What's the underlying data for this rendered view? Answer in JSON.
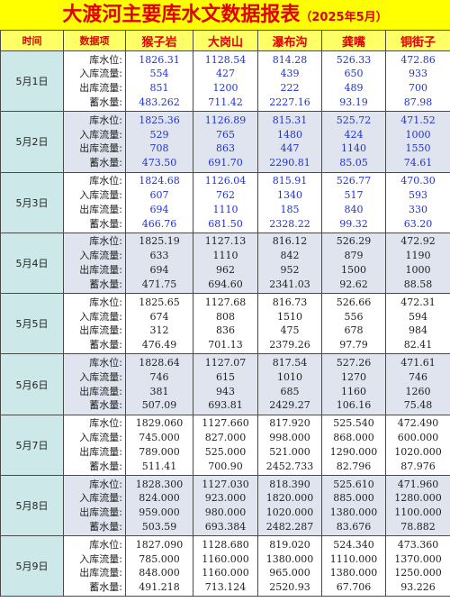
{
  "title": "大渡河主要库水文数据报表",
  "subtitle": "（2025年5月）",
  "headers": [
    "时间",
    "数据项",
    "猴子岩",
    "大岗山",
    "瀑布沟",
    "龚嘴",
    "铜街子"
  ],
  "labels": [
    "库水位:",
    "入库流量:",
    "出库流量:",
    "蓄水量:"
  ],
  "rows": [
    {
      "date": "5月1日",
      "v": [
        [
          "1826.31",
          "554",
          "851",
          "483.262"
        ],
        [
          "1128.54",
          "427",
          "1200",
          "711.42"
        ],
        [
          "814.28",
          "439",
          "222",
          "2227.16"
        ],
        [
          "526.33",
          "650",
          "489",
          "93.19"
        ],
        [
          "472.86",
          "933",
          "700",
          "87.98"
        ]
      ]
    },
    {
      "date": "5月2日",
      "v": [
        [
          "1825.36",
          "529",
          "708",
          "473.50"
        ],
        [
          "1126.89",
          "765",
          "863",
          "691.70"
        ],
        [
          "815.31",
          "1480",
          "447",
          "2290.81"
        ],
        [
          "525.72",
          "424",
          "1140",
          "85.05"
        ],
        [
          "471.52",
          "1000",
          "1550",
          "74.61"
        ]
      ]
    },
    {
      "date": "5月3日",
      "v": [
        [
          "1824.68",
          "607",
          "694",
          "466.76"
        ],
        [
          "1126.04",
          "762",
          "1110",
          "681.50"
        ],
        [
          "815.91",
          "1340",
          "185",
          "2328.22"
        ],
        [
          "526.77",
          "517",
          "840",
          "99.32"
        ],
        [
          "470.30",
          "593",
          "330",
          "63.20"
        ]
      ]
    },
    {
      "date": "5月4日",
      "v": [
        [
          "1825.19",
          "633",
          "694",
          "471.75"
        ],
        [
          "1127.13",
          "1110",
          "962",
          "694.60"
        ],
        [
          "816.12",
          "842",
          "952",
          "2341.03"
        ],
        [
          "526.29",
          "879",
          "1500",
          "92.62"
        ],
        [
          "472.92",
          "1190",
          "1000",
          "88.58"
        ]
      ]
    },
    {
      "date": "5月5日",
      "v": [
        [
          "1825.65",
          "674",
          "312",
          "476.49"
        ],
        [
          "1127.68",
          "808",
          "836",
          "701.13"
        ],
        [
          "816.73",
          "1510",
          "475",
          "2379.26"
        ],
        [
          "526.66",
          "556",
          "678",
          "97.79"
        ],
        [
          "472.31",
          "594",
          "984",
          "82.41"
        ]
      ]
    },
    {
      "date": "5月6日",
      "v": [
        [
          "1828.64",
          "746",
          "381",
          "507.09"
        ],
        [
          "1127.07",
          "615",
          "943",
          "693.81"
        ],
        [
          "817.54",
          "1010",
          "685",
          "2429.27"
        ],
        [
          "527.26",
          "1270",
          "1160",
          "106.16"
        ],
        [
          "471.61",
          "746",
          "1260",
          "75.48"
        ]
      ]
    },
    {
      "date": "5月7日",
      "v": [
        [
          "1829.060",
          "745.000",
          "789.000",
          "511.41"
        ],
        [
          "1127.660",
          "827.000",
          "525.000",
          "700.90"
        ],
        [
          "817.920",
          "998.000",
          "521.000",
          "2452.733"
        ],
        [
          "525.540",
          "868.000",
          "1290.000",
          "82.796"
        ],
        [
          "472.490",
          "600.000",
          "1020.000",
          "87.976"
        ]
      ]
    },
    {
      "date": "5月8日",
      "v": [
        [
          "1828.300",
          "824.000",
          "959.000",
          "503.59"
        ],
        [
          "1127.030",
          "923.000",
          "980.000",
          "693.384"
        ],
        [
          "818.390",
          "1820.000",
          "1020.000",
          "2482.287"
        ],
        [
          "525.610",
          "885.000",
          "1380.000",
          "83.676"
        ],
        [
          "471.960",
          "1280.000",
          "1100.000",
          "78.882"
        ]
      ]
    },
    {
      "date": "5月9日",
      "v": [
        [
          "1827.090",
          "785.000",
          "848.000",
          "491.218"
        ],
        [
          "1128.680",
          "1160.000",
          "1160.000",
          "713.124"
        ],
        [
          "819.020",
          "1380.000",
          "965.000",
          "2520.93"
        ],
        [
          "524.340",
          "1110.000",
          "1380.000",
          "67.706"
        ],
        [
          "473.360",
          "1370.000",
          "1250.000",
          "93.226"
        ]
      ]
    }
  ],
  "colors": {
    "title_bg": "#ffff00",
    "title_text": "#e00000",
    "date_bg": "#cde8e8",
    "alt_bg": "#dfe4ef",
    "blue_text": "#2233cc"
  }
}
